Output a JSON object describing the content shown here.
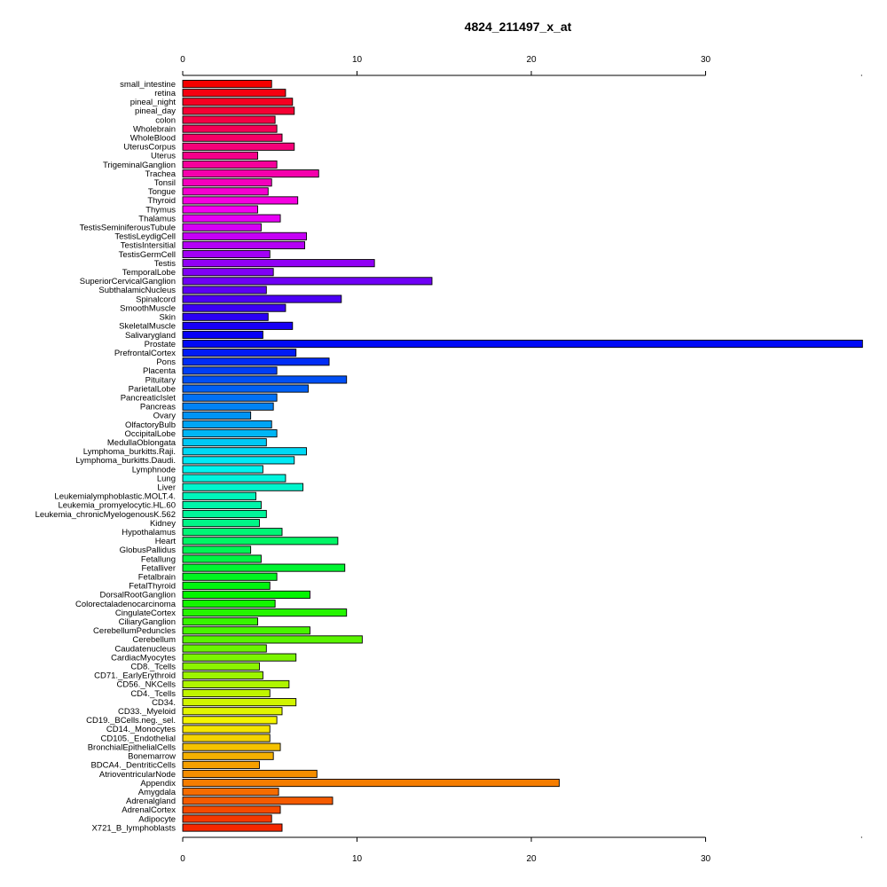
{
  "chart_data": {
    "type": "bar",
    "orientation": "horizontal",
    "title": "4824_211497_x_at",
    "xlabel": "",
    "ylabel": "",
    "xlim": [
      0,
      39
    ],
    "xticks": [
      "0",
      "10",
      "20",
      "30"
    ],
    "categories": [
      "small_intestine",
      "retina",
      "pineal_night",
      "pineal_day",
      "colon",
      "Wholebrain",
      "WholeBlood",
      "UterusCorpus",
      "Uterus",
      "TrigeminalGanglion",
      "Trachea",
      "Tonsil",
      "Tongue",
      "Thyroid",
      "Thymus",
      "Thalamus",
      "TestisSeminiferousTubule",
      "TestisLeydigCell",
      "TestisIntersitial",
      "TestisGermCell",
      "Testis",
      "TemporalLobe",
      "SuperiorCervicalGanglion",
      "SubthalamicNucleus",
      "Spinalcord",
      "SmoothMuscle",
      "Skin",
      "SkeletalMuscle",
      "Salivarygland",
      "Prostate",
      "PrefrontalCortex",
      "Pons",
      "Placenta",
      "Pituitary",
      "ParietalLobe",
      "PancreaticIslet",
      "Pancreas",
      "Ovary",
      "OlfactoryBulb",
      "OccipitalLobe",
      "MedullaOblongata",
      "Lymphoma_burkitts.Raji.",
      "Lymphoma_burkitts.Daudi.",
      "Lymphnode",
      "Lung",
      "Liver",
      "Leukemialymphoblastic.MOLT.4.",
      "Leukemia_promyelocytic.HL.60",
      "Leukemia_chronicMyelogenousK.562",
      "Kidney",
      "Hypothalamus",
      "Heart",
      "GlobusPallidus",
      "Fetallung",
      "Fetalliver",
      "Fetalbrain",
      "FetalThyroid",
      "DorsalRootGanglion",
      "Colorectaladenocarcinoma",
      "CingulateCortex",
      "CiliaryGanglion",
      "CerebellumPeduncles",
      "Cerebellum",
      "Caudatenucleus",
      "CardiacMyocytes",
      "CD8._Tcells",
      "CD71._EarlyErythroid",
      "CD56._NKCells",
      "CD4._Tcells",
      "CD34.",
      "CD33._Myeloid",
      "CD19._BCells.neg._sel.",
      "CD14._Monocytes",
      "CD105._Endothelial",
      "BronchialEpithelialCells",
      "Bonemarrow",
      "BDCA4._DentriticCells",
      "AtrioventricularNode",
      "Appendix",
      "Amygdala",
      "Adrenalgland",
      "AdrenalCortex",
      "Adipocyte",
      "X721_B_lymphoblasts"
    ],
    "values": [
      5.1,
      5.9,
      6.3,
      6.4,
      5.3,
      5.4,
      5.7,
      6.4,
      4.3,
      5.4,
      7.8,
      5.1,
      4.9,
      6.6,
      4.3,
      5.6,
      4.5,
      7.1,
      7.0,
      5.0,
      11.0,
      5.2,
      14.3,
      4.8,
      9.1,
      5.9,
      4.9,
      6.3,
      4.6,
      39.0,
      6.5,
      8.4,
      5.4,
      9.4,
      7.2,
      5.4,
      5.2,
      3.9,
      5.1,
      5.4,
      4.8,
      7.1,
      6.4,
      4.6,
      5.9,
      6.9,
      4.2,
      4.5,
      4.8,
      4.4,
      5.7,
      8.9,
      3.9,
      4.5,
      9.3,
      5.4,
      5.0,
      7.3,
      5.3,
      9.4,
      4.3,
      7.3,
      10.3,
      4.8,
      6.5,
      4.4,
      4.6,
      6.1,
      5.0,
      6.5,
      5.7,
      5.4,
      5.0,
      5.0,
      5.6,
      5.2,
      4.4,
      7.7,
      21.6,
      5.5,
      8.6,
      5.6,
      5.1,
      5.7
    ],
    "grid": false,
    "legend": "none",
    "color_scheme": "rainbow"
  }
}
